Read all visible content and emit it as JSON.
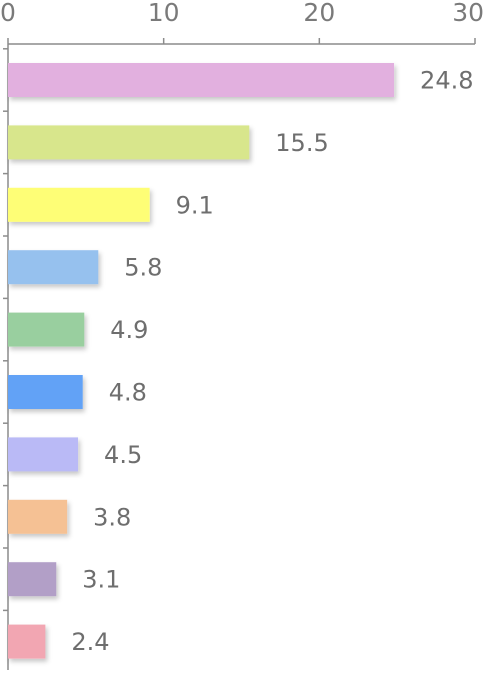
{
  "chart_data": {
    "type": "bar",
    "orientation": "horizontal",
    "title": "",
    "xlabel": "",
    "ylabel": "",
    "xlim": [
      0,
      30
    ],
    "x_ticks": [
      0,
      10,
      20,
      30
    ],
    "x_tick_labels": [
      "0",
      "10",
      "20",
      "30"
    ],
    "x_axis_position": "top",
    "grid": false,
    "legend": "none",
    "data_labels": true,
    "values": [
      24.8,
      15.5,
      9.1,
      5.8,
      4.9,
      4.8,
      4.5,
      3.8,
      3.1,
      2.4
    ],
    "value_labels": [
      "24.8",
      "15.5",
      "9.1",
      "5.8",
      "4.9",
      "4.8",
      "4.5",
      "3.8",
      "3.1",
      "2.4"
    ],
    "colors": [
      "#e2b0df",
      "#d8e68c",
      "#fefe76",
      "#96c1ee",
      "#99cf9f",
      "#62a2f6",
      "#babaf6",
      "#f5c194",
      "#b29fc7",
      "#f2a6b2"
    ]
  }
}
